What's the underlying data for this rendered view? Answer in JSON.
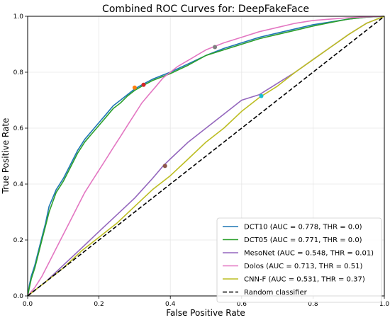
{
  "chart_data": {
    "type": "line",
    "title": "Combined ROC Curves for: DeepFakeFace",
    "xlabel": "False Positive Rate",
    "ylabel": "True Positive Rate",
    "xlim": [
      0.0,
      1.0
    ],
    "ylim": [
      0.0,
      1.0
    ],
    "xticks": [
      "0.0",
      "0.2",
      "0.4",
      "0.6",
      "0.8",
      "1.0"
    ],
    "yticks": [
      "0.0",
      "0.2",
      "0.4",
      "0.6",
      "0.8",
      "1.0"
    ],
    "grid": true,
    "legend_position": "lower-right",
    "series": [
      {
        "name": "DCT10 (AUC = 0.778, THR = 0.0)",
        "color": "#1f77b4",
        "x": [
          0,
          0.005,
          0.01,
          0.02,
          0.03,
          0.04,
          0.05,
          0.06,
          0.08,
          0.1,
          0.12,
          0.14,
          0.16,
          0.18,
          0.2,
          0.22,
          0.24,
          0.26,
          0.28,
          0.3,
          0.32,
          0.35,
          0.38,
          0.4,
          0.45,
          0.5,
          0.55,
          0.6,
          0.65,
          0.7,
          0.75,
          0.8,
          0.85,
          0.9,
          0.95,
          1.0
        ],
        "y": [
          0,
          0.04,
          0.07,
          0.11,
          0.16,
          0.21,
          0.26,
          0.32,
          0.38,
          0.42,
          0.47,
          0.52,
          0.56,
          0.59,
          0.62,
          0.65,
          0.68,
          0.7,
          0.72,
          0.74,
          0.755,
          0.775,
          0.79,
          0.8,
          0.83,
          0.86,
          0.885,
          0.905,
          0.925,
          0.94,
          0.955,
          0.97,
          0.98,
          0.99,
          0.997,
          1.0
        ]
      },
      {
        "name": "DCT05 (AUC = 0.771, THR = 0.0)",
        "color": "#2ca02c",
        "x": [
          0,
          0.005,
          0.01,
          0.02,
          0.03,
          0.04,
          0.05,
          0.06,
          0.08,
          0.1,
          0.12,
          0.14,
          0.16,
          0.18,
          0.2,
          0.22,
          0.24,
          0.26,
          0.28,
          0.3,
          0.32,
          0.35,
          0.38,
          0.4,
          0.45,
          0.5,
          0.55,
          0.6,
          0.65,
          0.7,
          0.75,
          0.8,
          0.85,
          0.9,
          0.95,
          1.0
        ],
        "y": [
          0,
          0.03,
          0.06,
          0.1,
          0.15,
          0.2,
          0.25,
          0.3,
          0.37,
          0.41,
          0.46,
          0.51,
          0.55,
          0.58,
          0.61,
          0.64,
          0.67,
          0.69,
          0.715,
          0.735,
          0.75,
          0.77,
          0.785,
          0.795,
          0.825,
          0.86,
          0.88,
          0.9,
          0.92,
          0.935,
          0.95,
          0.965,
          0.978,
          0.99,
          0.997,
          1.0
        ]
      },
      {
        "name": "MesoNet (AUC = 0.548, THR = 0.01)",
        "color": "#9467bd",
        "x": [
          0,
          0.02,
          0.05,
          0.1,
          0.15,
          0.2,
          0.25,
          0.3,
          0.35,
          0.38,
          0.4,
          0.45,
          0.5,
          0.55,
          0.6,
          0.65,
          0.7,
          0.75,
          0.8,
          0.85,
          0.9,
          0.95,
          1.0
        ],
        "y": [
          0,
          0.02,
          0.05,
          0.11,
          0.17,
          0.23,
          0.29,
          0.35,
          0.42,
          0.465,
          0.49,
          0.55,
          0.6,
          0.65,
          0.7,
          0.72,
          0.76,
          0.8,
          0.845,
          0.89,
          0.935,
          0.975,
          1.0
        ]
      },
      {
        "name": "Dolos (AUC = 0.713, THR = 0.51)",
        "color": "#e377c2",
        "x": [
          0,
          0.02,
          0.04,
          0.06,
          0.08,
          0.1,
          0.12,
          0.14,
          0.16,
          0.18,
          0.2,
          0.22,
          0.24,
          0.26,
          0.28,
          0.3,
          0.32,
          0.34,
          0.36,
          0.38,
          0.4,
          0.42,
          0.44,
          0.46,
          0.48,
          0.5,
          0.52,
          0.55,
          0.6,
          0.65,
          0.7,
          0.75,
          0.8,
          0.85,
          0.9,
          0.95,
          1.0
        ],
        "y": [
          0,
          0.03,
          0.07,
          0.12,
          0.17,
          0.22,
          0.27,
          0.32,
          0.37,
          0.41,
          0.45,
          0.49,
          0.53,
          0.57,
          0.61,
          0.65,
          0.69,
          0.72,
          0.75,
          0.78,
          0.8,
          0.82,
          0.835,
          0.85,
          0.865,
          0.88,
          0.89,
          0.905,
          0.925,
          0.945,
          0.96,
          0.975,
          0.985,
          0.99,
          0.995,
          0.998,
          1.0
        ]
      },
      {
        "name": "CNN-F (AUC = 0.531, THR = 0.37)",
        "color": "#bcbd22",
        "x": [
          0,
          0.02,
          0.05,
          0.1,
          0.15,
          0.2,
          0.25,
          0.3,
          0.35,
          0.4,
          0.45,
          0.5,
          0.55,
          0.6,
          0.65,
          0.7,
          0.75,
          0.8,
          0.85,
          0.9,
          0.95,
          1.0
        ],
        "y": [
          0,
          0.02,
          0.05,
          0.1,
          0.16,
          0.21,
          0.26,
          0.32,
          0.38,
          0.43,
          0.49,
          0.55,
          0.6,
          0.66,
          0.71,
          0.75,
          0.8,
          0.845,
          0.89,
          0.935,
          0.975,
          1.0
        ]
      },
      {
        "name": "Random classifier",
        "color": "#000000",
        "dashed": true,
        "x": [
          0,
          1
        ],
        "y": [
          0,
          1
        ]
      }
    ],
    "markers": [
      {
        "x": 0.3,
        "y": 0.745,
        "color": "#ff7f0e"
      },
      {
        "x": 0.325,
        "y": 0.755,
        "color": "#d62728"
      },
      {
        "x": 0.385,
        "y": 0.465,
        "color": "#8c564b"
      },
      {
        "x": 0.525,
        "y": 0.89,
        "color": "#7f7f7f"
      },
      {
        "x": 0.655,
        "y": 0.715,
        "color": "#17becf"
      }
    ]
  }
}
